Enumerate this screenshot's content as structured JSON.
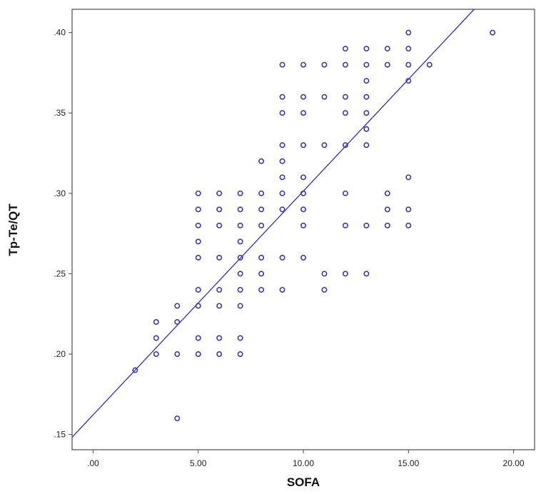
{
  "chart_data": {
    "type": "scatter",
    "title": "",
    "xlabel": "SOFA",
    "ylabel": "Tp-Te/QT",
    "xlim": [
      -1.0,
      21.0
    ],
    "ylim": [
      0.1405,
      0.4145
    ],
    "x_ticks": [
      0,
      5,
      10,
      15,
      20
    ],
    "x_tick_labels": [
      ".00",
      "5.00",
      "10.00",
      "15.00",
      "20.00"
    ],
    "y_ticks": [
      0.15,
      0.2,
      0.25,
      0.3,
      0.35,
      0.4
    ],
    "y_tick_labels": [
      ".15",
      ".20",
      ".25",
      ".30",
      ".35",
      ".40"
    ],
    "grid": false,
    "legend": "none",
    "colors": {
      "marker": "#3a3ab0",
      "fit_line": "#2f2fc0",
      "frame": "#4a4a4a"
    },
    "points": [
      [
        2,
        0.19
      ],
      [
        3,
        0.2
      ],
      [
        3,
        0.21
      ],
      [
        3,
        0.22
      ],
      [
        4,
        0.16
      ],
      [
        4,
        0.2
      ],
      [
        4,
        0.22
      ],
      [
        4,
        0.23
      ],
      [
        5,
        0.2
      ],
      [
        5,
        0.21
      ],
      [
        5,
        0.23
      ],
      [
        5,
        0.24
      ],
      [
        5,
        0.26
      ],
      [
        5,
        0.27
      ],
      [
        5,
        0.28
      ],
      [
        5,
        0.29
      ],
      [
        5,
        0.3
      ],
      [
        6,
        0.2
      ],
      [
        6,
        0.21
      ],
      [
        6,
        0.23
      ],
      [
        6,
        0.24
      ],
      [
        6,
        0.26
      ],
      [
        6,
        0.28
      ],
      [
        6,
        0.29
      ],
      [
        6,
        0.3
      ],
      [
        7,
        0.2
      ],
      [
        7,
        0.21
      ],
      [
        7,
        0.23
      ],
      [
        7,
        0.24
      ],
      [
        7,
        0.25
      ],
      [
        7,
        0.26
      ],
      [
        7,
        0.27
      ],
      [
        7,
        0.28
      ],
      [
        7,
        0.29
      ],
      [
        7,
        0.3
      ],
      [
        8,
        0.24
      ],
      [
        8,
        0.25
      ],
      [
        8,
        0.26
      ],
      [
        8,
        0.28
      ],
      [
        8,
        0.29
      ],
      [
        8,
        0.3
      ],
      [
        8,
        0.32
      ],
      [
        9,
        0.24
      ],
      [
        9,
        0.26
      ],
      [
        9,
        0.29
      ],
      [
        9,
        0.3
      ],
      [
        9,
        0.31
      ],
      [
        9,
        0.32
      ],
      [
        9,
        0.33
      ],
      [
        9,
        0.35
      ],
      [
        9,
        0.36
      ],
      [
        9,
        0.38
      ],
      [
        10,
        0.26
      ],
      [
        10,
        0.28
      ],
      [
        10,
        0.29
      ],
      [
        10,
        0.3
      ],
      [
        10,
        0.31
      ],
      [
        10,
        0.33
      ],
      [
        10,
        0.35
      ],
      [
        10,
        0.36
      ],
      [
        10,
        0.38
      ],
      [
        11,
        0.24
      ],
      [
        11,
        0.25
      ],
      [
        11,
        0.33
      ],
      [
        11,
        0.36
      ],
      [
        11,
        0.38
      ],
      [
        12,
        0.25
      ],
      [
        12,
        0.28
      ],
      [
        12,
        0.3
      ],
      [
        12,
        0.33
      ],
      [
        12,
        0.35
      ],
      [
        12,
        0.36
      ],
      [
        12,
        0.38
      ],
      [
        12,
        0.39
      ],
      [
        13,
        0.25
      ],
      [
        13,
        0.28
      ],
      [
        13,
        0.33
      ],
      [
        13,
        0.34
      ],
      [
        13,
        0.35
      ],
      [
        13,
        0.36
      ],
      [
        13,
        0.37
      ],
      [
        13,
        0.38
      ],
      [
        13,
        0.39
      ],
      [
        14,
        0.28
      ],
      [
        14,
        0.29
      ],
      [
        14,
        0.3
      ],
      [
        14,
        0.38
      ],
      [
        14,
        0.39
      ],
      [
        15,
        0.28
      ],
      [
        15,
        0.29
      ],
      [
        15,
        0.31
      ],
      [
        15,
        0.37
      ],
      [
        15,
        0.38
      ],
      [
        15,
        0.39
      ],
      [
        15,
        0.4
      ],
      [
        16,
        0.38
      ],
      [
        19,
        0.4
      ]
    ],
    "fit_line": {
      "intercept": 0.1622,
      "slope": 0.013919
    }
  }
}
